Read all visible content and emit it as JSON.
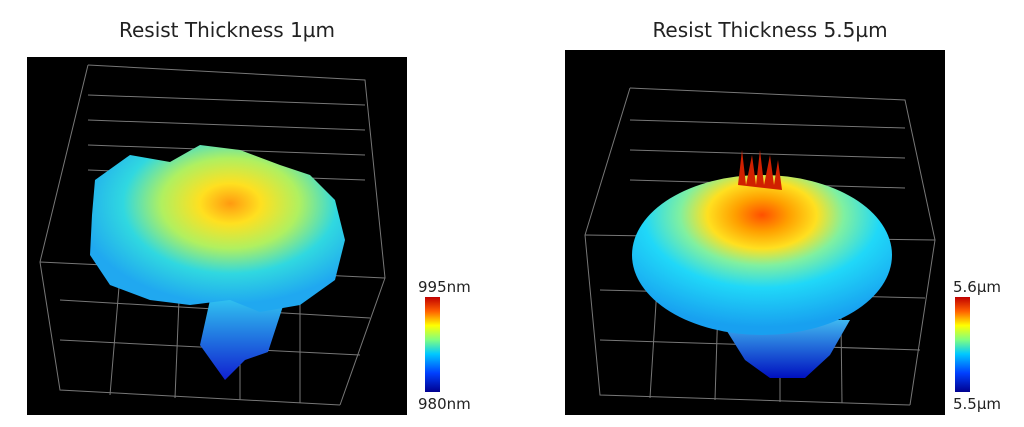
{
  "panels": [
    {
      "title": "Resist Thickness 1µm",
      "colorbar": {
        "max_label": "995nm",
        "min_label": "980nm"
      }
    },
    {
      "title": "Resist Thickness 5.5µm",
      "colorbar": {
        "max_label": "5.6µm",
        "min_label": "5.5µm"
      }
    }
  ]
}
